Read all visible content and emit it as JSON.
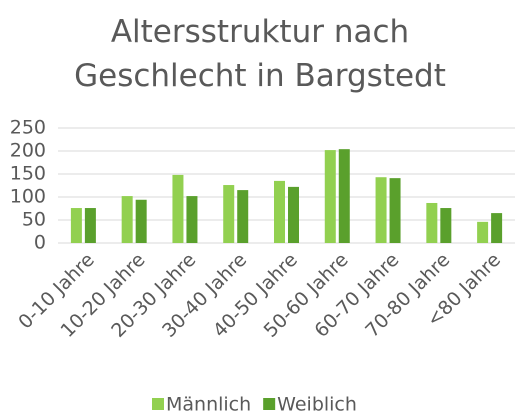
{
  "chart_data": {
    "type": "bar",
    "title": "Altersstruktur nach Geschlecht in Bargstedt",
    "categories": [
      "0-10 Jahre",
      "10-20 Jahre",
      "20-30 Jahre",
      "30-40 Jahre",
      "40-50 Jahre",
      "50-60 Jahre",
      "60-70 Jahre",
      "70-80 Jahre",
      "<80 Jahre"
    ],
    "series": [
      {
        "name": "Männlich",
        "color": "#92d050",
        "values": [
          76,
          102,
          148,
          126,
          135,
          202,
          143,
          87,
          46
        ]
      },
      {
        "name": "Weiblich",
        "color": "#5aa02c",
        "values": [
          76,
          94,
          102,
          115,
          122,
          204,
          141,
          76,
          65
        ]
      }
    ],
    "ylim": [
      0,
      250
    ],
    "yticks": [
      0,
      50,
      100,
      150,
      200,
      250
    ],
    "grid": true,
    "legend": "bottom"
  }
}
